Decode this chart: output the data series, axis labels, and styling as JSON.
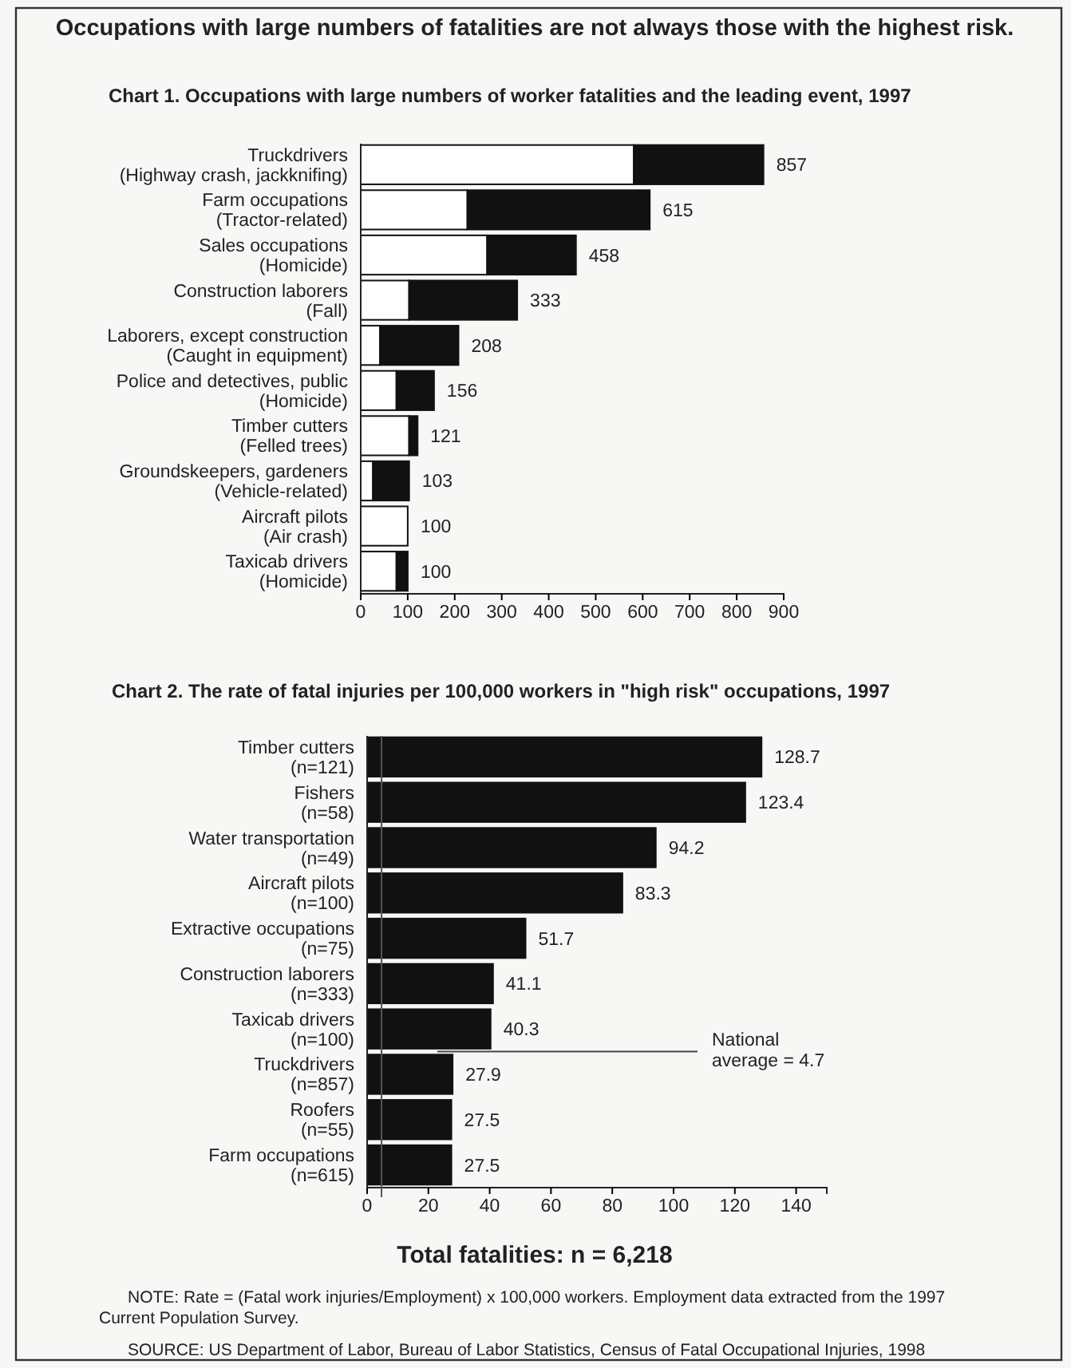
{
  "chart_data": [
    {
      "type": "bar",
      "title": "Occupations with large numbers of fatalities are not always those with the highest risk.",
      "subtitle": "Chart 1.  Occupations with large numbers of worker fatalities and the leading event, 1997",
      "orientation": "horizontal",
      "stacked": true,
      "categories": [
        "Truckdrivers\n(Highway crash, jackknifing)",
        "Farm occupations\n(Tractor-related)",
        "Sales occupations\n(Homicide)",
        "Construction laborers\n(Fall)",
        "Laborers, except construction\n(Caught in equipment)",
        "Police and detectives, public\n(Homicide)",
        "Timber cutters\n(Felled trees)",
        "Groundskeepers, gardeners\n(Vehicle-related)",
        "Aircraft pilots\n(Air crash)",
        "Taxicab drivers\n(Homicide)"
      ],
      "series": [
        {
          "color": "#ffffff",
          "values": [
            581,
            227,
            269,
            103,
            41,
            76,
            103,
            26,
            100,
            76
          ]
        },
        {
          "color": "#111111",
          "values": [
            276,
            388,
            189,
            230,
            167,
            80,
            18,
            77,
            0,
            24
          ]
        }
      ],
      "totals": [
        "857",
        "615",
        "458",
        "333",
        "208",
        "156",
        "121",
        "103",
        "100",
        "100"
      ],
      "xlim": [
        0,
        900
      ],
      "xticks": [
        0,
        100,
        200,
        300,
        400,
        500,
        600,
        700,
        800,
        900
      ]
    },
    {
      "type": "bar",
      "title": "Chart 2.  The rate of fatal injuries per 100,000 workers in \"high risk\" occupations, 1997",
      "orientation": "horizontal",
      "categories": [
        "Timber cutters\n(n=121)",
        "Fishers\n(n=58)",
        "Water transportation\n(n=49)",
        "Aircraft pilots\n(n=100)",
        "Extractive occupations\n(n=75)",
        "Construction laborers\n(n=333)",
        "Taxicab drivers\n(n=100)",
        "Truckdrivers\n(n=857)",
        "Roofers\n(n=55)",
        "Farm occupations\n(n=615)"
      ],
      "values": [
        128.7,
        123.4,
        94.2,
        83.3,
        51.7,
        41.1,
        40.3,
        27.9,
        27.5,
        27.5
      ],
      "color": "#111111",
      "data_labels": true,
      "xlim": [
        0,
        150
      ],
      "xticks": [
        0,
        20,
        40,
        60,
        80,
        100,
        120,
        140
      ],
      "ref_lines": [
        {
          "axis": "x",
          "value": 4.7,
          "color": "#555555"
        }
      ],
      "annotations": [
        "National average = 4.7",
        "Total fatalities:  n = 6,218",
        "NOTE: Rate = (Fatal work injuries/Employment) x 100,000 workers. Employment data extracted from the 1997 Current Population Survey.",
        "SOURCE: US Department of Labor, Bureau of Labor Statistics, Census of Fatal Occupational Injuries, 1998"
      ]
    }
  ]
}
